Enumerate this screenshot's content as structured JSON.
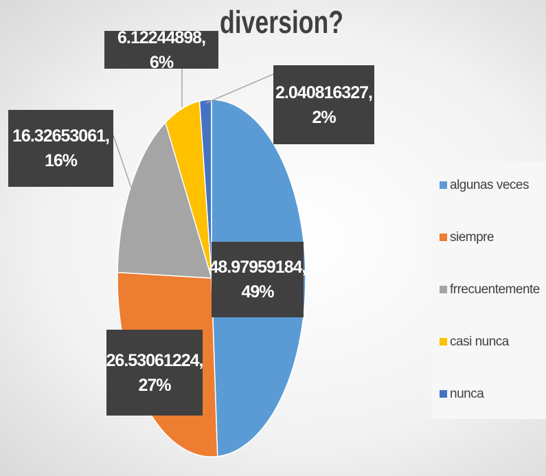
{
  "chart_data": {
    "type": "pie",
    "title": "diversion?",
    "categories": [
      "algunas veces",
      "siempre",
      "frrecuentemente",
      "casi nunca",
      "nunca"
    ],
    "values": [
      48.97959184,
      26.53061224,
      16.32653061,
      6.12244898,
      2.040816327
    ],
    "value_labels": [
      "48.97959184, 49%",
      "26.53061224, 27%",
      "16.32653061, 16%",
      "6.12244898, 6%",
      "2.040816327, 2%"
    ],
    "colors": [
      "#5b9bd5",
      "#ed7d31",
      "#a5a5a5",
      "#ffc000",
      "#4472c4"
    ],
    "legend": "right"
  }
}
